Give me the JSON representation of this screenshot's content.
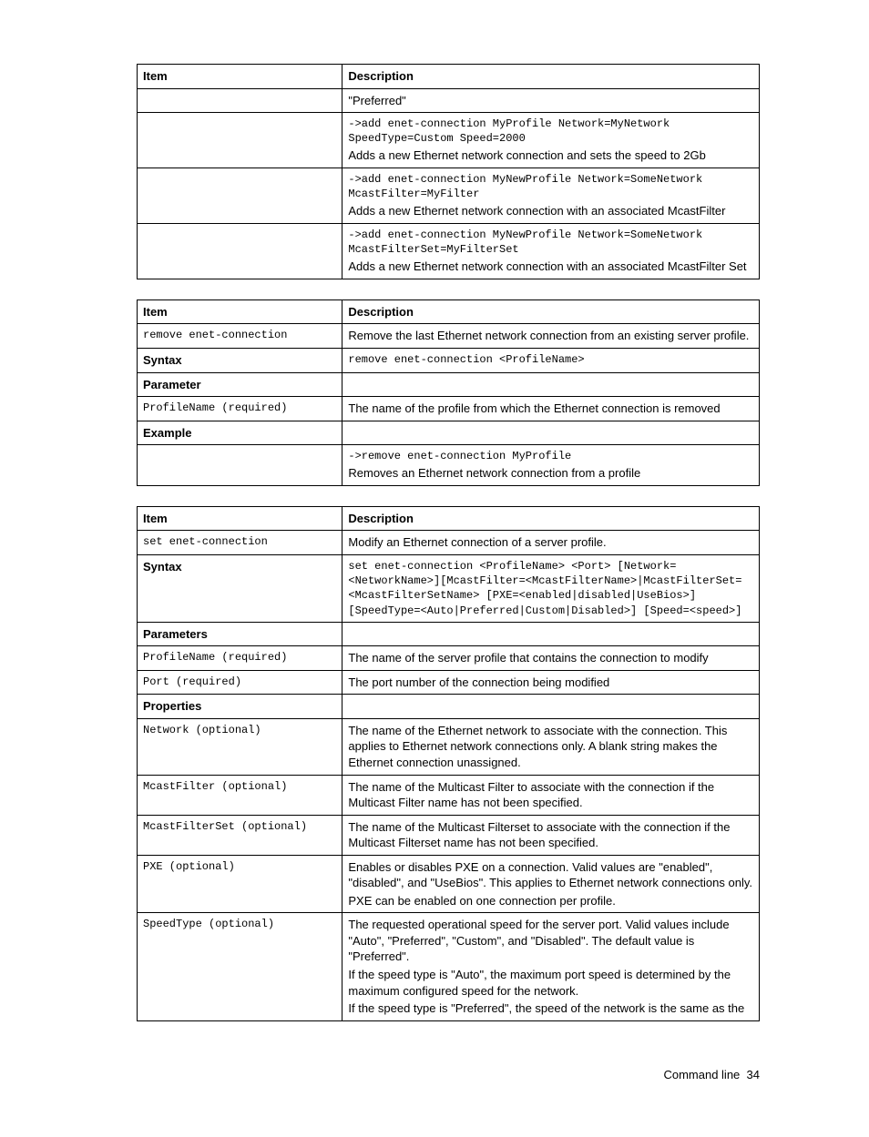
{
  "tables": [
    {
      "header": {
        "item": "Item",
        "desc": "Description"
      },
      "col_widths": {
        "item": "33%",
        "desc": "67%"
      },
      "rows": [
        {
          "item_lines": [],
          "desc_lines": [
            {
              "text": "\"Preferred\"",
              "mono": false
            }
          ]
        },
        {
          "item_lines": [],
          "desc_lines": [
            {
              "text": "->add enet-connection MyProfile Network=MyNetwork SpeedType=Custom Speed=2000",
              "mono": true
            },
            {
              "text": "Adds a new Ethernet network connection and sets the speed to 2Gb",
              "mono": false
            }
          ]
        },
        {
          "item_lines": [],
          "desc_lines": [
            {
              "text": "->add enet-connection MyNewProfile Network=SomeNetwork McastFilter=MyFilter",
              "mono": true
            },
            {
              "text": "Adds a new Ethernet network connection with an associated McastFilter",
              "mono": false
            }
          ]
        },
        {
          "item_lines": [],
          "desc_lines": [
            {
              "text": "->add enet-connection MyNewProfile Network=SomeNetwork McastFilterSet=MyFilterSet",
              "mono": true
            },
            {
              "text": "Adds a new Ethernet network connection with an associated McastFilter Set",
              "mono": false
            }
          ]
        }
      ]
    },
    {
      "header": {
        "item": "Item",
        "desc": "Description"
      },
      "col_widths": {
        "item": "33%",
        "desc": "67%"
      },
      "rows": [
        {
          "item_lines": [
            {
              "text": "remove enet-connection",
              "mono": true,
              "bold": false
            }
          ],
          "desc_lines": [
            {
              "text": "Remove the last Ethernet network connection from an existing server profile.",
              "mono": false
            }
          ]
        },
        {
          "item_lines": [
            {
              "text": "Syntax",
              "mono": false,
              "bold": true
            }
          ],
          "desc_lines": [
            {
              "text": "remove enet-connection <ProfileName>",
              "mono": true
            }
          ]
        },
        {
          "item_lines": [
            {
              "text": "Parameter",
              "mono": false,
              "bold": true
            }
          ],
          "desc_lines": []
        },
        {
          "item_lines": [
            {
              "text": "ProfileName (required)",
              "mono": true,
              "bold": false
            }
          ],
          "desc_lines": [
            {
              "text": "The name of the profile from which the Ethernet connection is removed",
              "mono": false
            }
          ]
        },
        {
          "item_lines": [
            {
              "text": "Example",
              "mono": false,
              "bold": true
            }
          ],
          "desc_lines": []
        },
        {
          "item_lines": [],
          "desc_lines": [
            {
              "text": "->remove enet-connection MyProfile",
              "mono": true
            },
            {
              "text": "Removes an Ethernet network connection from a profile",
              "mono": false
            }
          ]
        }
      ]
    },
    {
      "header": {
        "item": "Item",
        "desc": "Description"
      },
      "col_widths": {
        "item": "33%",
        "desc": "67%"
      },
      "rows": [
        {
          "item_lines": [
            {
              "text": "set enet-connection",
              "mono": true,
              "bold": false
            }
          ],
          "desc_lines": [
            {
              "text": "Modify an Ethernet connection of a server profile.",
              "mono": false
            }
          ]
        },
        {
          "item_lines": [
            {
              "text": "Syntax",
              "mono": false,
              "bold": true
            }
          ],
          "desc_lines": [
            {
              "text": "set enet-connection <ProfileName> <Port> [Network=<NetworkName>][McastFilter=<McastFilterName>|McastFilterSet=<McastFilterSetName> [PXE=<enabled|disabled|UseBios>] [SpeedType=<Auto|Preferred|Custom|Disabled>] [Speed=<speed>]",
              "mono": true
            }
          ]
        },
        {
          "item_lines": [
            {
              "text": "Parameters",
              "mono": false,
              "bold": true
            }
          ],
          "desc_lines": []
        },
        {
          "item_lines": [
            {
              "text": "ProfileName (required)",
              "mono": true,
              "bold": false
            }
          ],
          "desc_lines": [
            {
              "text": "The name of the server profile that contains the connection to modify",
              "mono": false
            }
          ]
        },
        {
          "item_lines": [
            {
              "text": "Port (required)",
              "mono": true,
              "bold": false
            }
          ],
          "desc_lines": [
            {
              "text": "The port number of the connection being modified",
              "mono": false
            }
          ]
        },
        {
          "item_lines": [
            {
              "text": "Properties",
              "mono": false,
              "bold": true
            }
          ],
          "desc_lines": []
        },
        {
          "item_lines": [
            {
              "text": "Network (optional)",
              "mono": true,
              "bold": false
            }
          ],
          "desc_lines": [
            {
              "text": "The name of the Ethernet network to associate with the connection. This applies to Ethernet network connections only. A blank string makes the Ethernet connection unassigned.",
              "mono": false
            }
          ]
        },
        {
          "item_lines": [
            {
              "text": "McastFilter (optional)",
              "mono": true,
              "bold": false
            }
          ],
          "desc_lines": [
            {
              "text": "The name of the Multicast Filter to associate with the connection if the Multicast Filter name has not been specified.",
              "mono": false
            }
          ]
        },
        {
          "item_lines": [
            {
              "text": "McastFilterSet (optional)",
              "mono": true,
              "bold": false
            }
          ],
          "desc_lines": [
            {
              "text": "The name of the Multicast Filterset to associate with the connection if the Multicast Filterset name has not been specified.",
              "mono": false
            }
          ]
        },
        {
          "item_lines": [
            {
              "text": "PXE (optional)",
              "mono": true,
              "bold": false
            }
          ],
          "desc_lines": [
            {
              "text": "Enables or disables PXE on a connection. Valid values are \"enabled\", \"disabled\", and \"UseBios\". This applies to Ethernet network connections only.",
              "mono": false
            },
            {
              "text": "PXE can be enabled on one connection per profile.",
              "mono": false
            }
          ]
        },
        {
          "item_lines": [
            {
              "text": "SpeedType (optional)",
              "mono": true,
              "bold": false
            }
          ],
          "desc_lines": [
            {
              "text": "The requested operational speed for the server port. Valid values include \"Auto\", \"Preferred\", \"Custom\", and \"Disabled\". The default value is \"Preferred\".",
              "mono": false
            },
            {
              "text": "If the speed type is \"Auto\", the maximum port speed is determined by the maximum configured speed for the network.",
              "mono": false
            },
            {
              "text": "If the speed type is \"Preferred\", the speed of the network is the same as the",
              "mono": false
            }
          ]
        }
      ]
    }
  ],
  "footer": {
    "label": "Command line",
    "page": "34"
  }
}
